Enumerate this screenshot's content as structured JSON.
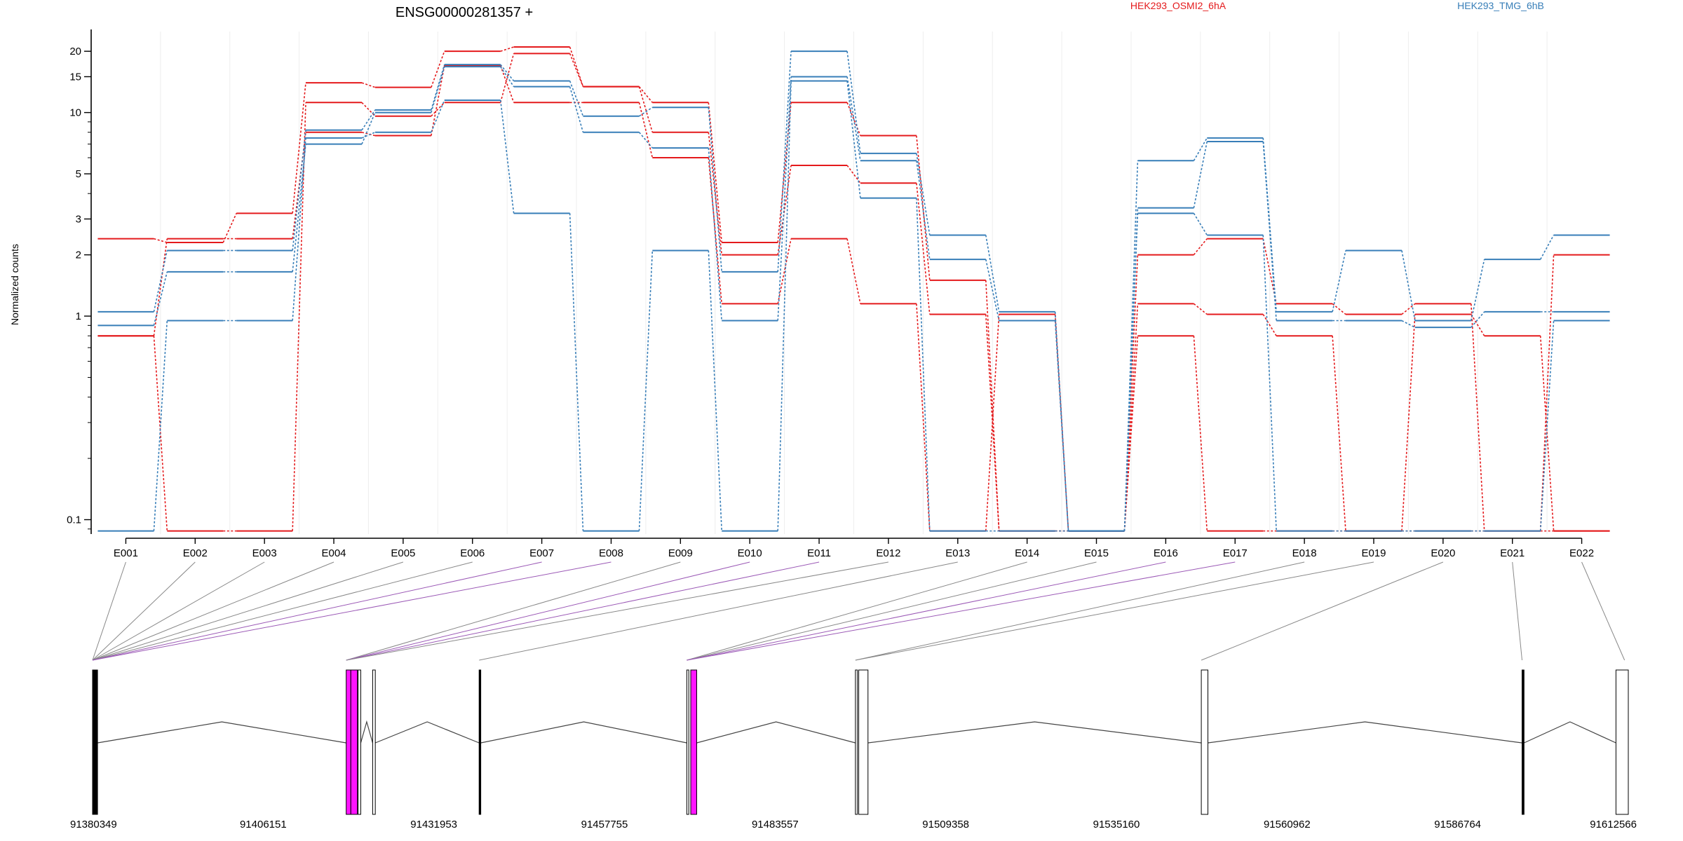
{
  "chart_data": [
    {
      "type": "line",
      "title": "ENSG00000281357 +",
      "xlabel": "",
      "ylabel": "Normalized counts",
      "y_scale": "log",
      "ylim": [
        0.085,
        25
      ],
      "y_ticks": [
        0.1,
        1,
        2,
        3,
        5,
        10,
        15,
        20
      ],
      "y_tick_labels": [
        "0.1",
        "1",
        "2",
        "3",
        "5",
        "10",
        "15",
        "20"
      ],
      "grid": true,
      "legend_placement": "top-right",
      "categories": [
        "E001",
        "E002",
        "E003",
        "E004",
        "E005",
        "E006",
        "E007",
        "E008",
        "E009",
        "E010",
        "E011",
        "E012",
        "E013",
        "E014",
        "E015",
        "E016",
        "E017",
        "E018",
        "E019",
        "E020",
        "E021",
        "E022"
      ],
      "series": [
        {
          "name": "HEK293_OSMI2_6hA",
          "color": "#e41a1c",
          "values": [
            2.4,
            2.3,
            3.2,
            14.0,
            13.3,
            20.0,
            21.0,
            13.4,
            11.2,
            2.3,
            11.2,
            7.7,
            1.5,
            0.088,
            0.088,
            2.0,
            2.4,
            1.15,
            1.02,
            1.15,
            0.088,
            2.0
          ]
        },
        {
          "name": "",
          "color": "#e41a1c",
          "values": [
            0.8,
            0.088,
            0.088,
            11.2,
            9.6,
            11.2,
            19.5,
            13.4,
            8.0,
            2.0,
            5.5,
            4.5,
            1.02,
            0.088,
            0.088,
            1.15,
            1.02,
            0.8,
            0.088,
            1.02,
            0.8,
            0.088
          ]
        },
        {
          "name": "",
          "color": "#e41a1c",
          "values": [
            0.8,
            2.4,
            2.4,
            8.0,
            7.7,
            17.0,
            11.2,
            11.2,
            6.0,
            1.15,
            2.4,
            1.15,
            0.088,
            1.02,
            0.088,
            0.8,
            0.088,
            0.088,
            0.088,
            0.088,
            0.088,
            0.088
          ]
        },
        {
          "name": "HEK293_TMG_6hB",
          "color": "#377eb8",
          "values": [
            1.05,
            2.1,
            2.1,
            8.2,
            10.3,
            17.2,
            14.3,
            9.6,
            10.6,
            1.65,
            20.0,
            6.3,
            2.5,
            1.05,
            0.088,
            5.8,
            7.5,
            1.05,
            2.1,
            0.95,
            1.9,
            2.5
          ]
        },
        {
          "name": "",
          "color": "#377eb8",
          "values": [
            0.9,
            1.65,
            1.65,
            7.0,
            10.0,
            16.8,
            13.4,
            8.0,
            6.7,
            0.95,
            15.0,
            5.8,
            1.9,
            0.95,
            0.088,
            3.4,
            7.2,
            0.95,
            0.95,
            0.88,
            1.05,
            1.05
          ]
        },
        {
          "name": "",
          "color": "#377eb8",
          "values": [
            0.088,
            0.95,
            0.95,
            7.5,
            8.0,
            11.5,
            3.2,
            0.088,
            2.1,
            0.088,
            14.3,
            3.8,
            0.088,
            0.088,
            0.088,
            3.2,
            2.5,
            0.088,
            0.088,
            0.088,
            0.088,
            0.95
          ]
        }
      ]
    },
    {
      "type": "diagram",
      "x_tick_labels": [
        "91380349",
        "91406151",
        "91431953",
        "91457755",
        "91483557",
        "91509358",
        "91535160",
        "91560962",
        "91586764",
        "91612566"
      ],
      "xlim": [
        91380349,
        91612566
      ],
      "exon_highlight_color": "#ff14ff",
      "exons": [
        {
          "start": 91380349,
          "end": 91380650,
          "fill": "black",
          "link": "E001"
        },
        {
          "start": 91380700,
          "end": 91381100,
          "fill": "black",
          "link": "E002"
        },
        {
          "start": 91418700,
          "end": 91419400,
          "fill": "#ff14ff",
          "link": "E008"
        },
        {
          "start": 91419400,
          "end": 91420400,
          "fill": "#ff14ff",
          "link": "E008"
        },
        {
          "start": 91420500,
          "end": 91420900,
          "fill": "white",
          "link": "E009"
        },
        {
          "start": 91422700,
          "end": 91423100,
          "fill": "white",
          "link": "E010"
        },
        {
          "start": 91438800,
          "end": 91439050,
          "fill": "black",
          "link": "E012"
        },
        {
          "start": 91470200,
          "end": 91470500,
          "fill": "white",
          "link": "E013"
        },
        {
          "start": 91470800,
          "end": 91471700,
          "fill": "#ff14ff",
          "link": "E017"
        },
        {
          "start": 91495700,
          "end": 91496000,
          "fill": "white",
          "link": "E018"
        },
        {
          "start": 91496200,
          "end": 91497600,
          "fill": "white",
          "link": "E019"
        },
        {
          "start": 91548000,
          "end": 91549000,
          "fill": "white",
          "link": "E020"
        },
        {
          "start": 91596500,
          "end": 91596800,
          "fill": "black",
          "link": "E021"
        },
        {
          "start": 91610700,
          "end": 91612566,
          "fill": "white",
          "link": "E022"
        }
      ],
      "links": [
        {
          "exon": "E001",
          "gene_pos": 91380349,
          "color": "#888888"
        },
        {
          "exon": "E002",
          "gene_pos": 91380349,
          "color": "#888888"
        },
        {
          "exon": "E003",
          "gene_pos": 91380349,
          "color": "#888888"
        },
        {
          "exon": "E004",
          "gene_pos": 91380349,
          "color": "#888888"
        },
        {
          "exon": "E005",
          "gene_pos": 91380349,
          "color": "#888888"
        },
        {
          "exon": "E006",
          "gene_pos": 91380349,
          "color": "#888888"
        },
        {
          "exon": "E007",
          "gene_pos": 91380349,
          "color": "#9b59b6"
        },
        {
          "exon": "E008",
          "gene_pos": 91380349,
          "color": "#9b59b6"
        },
        {
          "exon": "E009",
          "gene_pos": 91418700,
          "color": "#888888"
        },
        {
          "exon": "E010",
          "gene_pos": 91418700,
          "color": "#9b59b6"
        },
        {
          "exon": "E011",
          "gene_pos": 91418700,
          "color": "#9b59b6"
        },
        {
          "exon": "E012",
          "gene_pos": 91418700,
          "color": "#888888"
        },
        {
          "exon": "E013",
          "gene_pos": 91438800,
          "color": "#888888"
        },
        {
          "exon": "E014",
          "gene_pos": 91470200,
          "color": "#888888"
        },
        {
          "exon": "E015",
          "gene_pos": 91470200,
          "color": "#888888"
        },
        {
          "exon": "E016",
          "gene_pos": 91470200,
          "color": "#9b59b6"
        },
        {
          "exon": "E017",
          "gene_pos": 91470200,
          "color": "#9b59b6"
        },
        {
          "exon": "E018",
          "gene_pos": 91495700,
          "color": "#888888"
        },
        {
          "exon": "E019",
          "gene_pos": 91495700,
          "color": "#888888"
        },
        {
          "exon": "E020",
          "gene_pos": 91548000,
          "color": "#888888"
        },
        {
          "exon": "E021",
          "gene_pos": 91596500,
          "color": "#888888"
        },
        {
          "exon": "E022",
          "gene_pos": 91612000,
          "color": "#888888"
        }
      ]
    }
  ]
}
